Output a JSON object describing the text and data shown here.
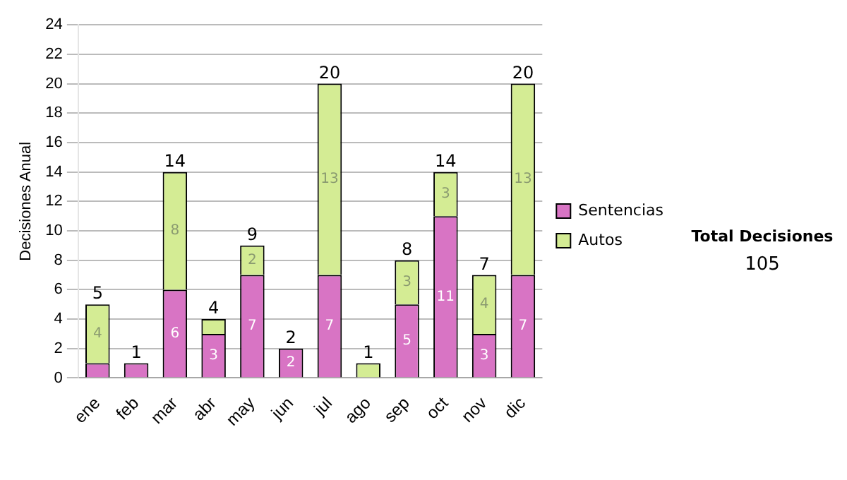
{
  "chart_data": {
    "type": "bar",
    "stacked": true,
    "ylabel": "Decisiones Anual",
    "categories": [
      "ene",
      "feb",
      "mar",
      "abr",
      "may",
      "jun",
      "jul",
      "ago",
      "sep",
      "oct",
      "nov",
      "dic"
    ],
    "series": [
      {
        "name": "Sentencias",
        "color": "#d874c4",
        "values": [
          1,
          1,
          6,
          3,
          7,
          2,
          7,
          0,
          5,
          11,
          3,
          7
        ],
        "value_labels": [
          null,
          null,
          "6",
          "3",
          "7",
          "2",
          "7",
          null,
          "5",
          "11",
          "3",
          "7"
        ]
      },
      {
        "name": "Autos",
        "color": "#d4ec94",
        "values": [
          4,
          0,
          8,
          1,
          2,
          0,
          13,
          1,
          3,
          3,
          4,
          13
        ],
        "value_labels": [
          "4",
          null,
          "8",
          null,
          "2",
          null,
          "13",
          null,
          "3",
          "3",
          "4",
          "13"
        ]
      }
    ],
    "totals": [
      "5",
      "1",
      "14",
      "4",
      "9",
      "2",
      "20",
      "1",
      "8",
      "14",
      "7",
      "20"
    ],
    "ylim": [
      0,
      24
    ],
    "yticks": [
      0,
      2,
      4,
      6,
      8,
      10,
      12,
      14,
      16,
      18,
      20,
      22,
      24
    ],
    "grid": "y",
    "legend": "right",
    "annotations": [
      "Total Decisiones",
      "105"
    ]
  }
}
